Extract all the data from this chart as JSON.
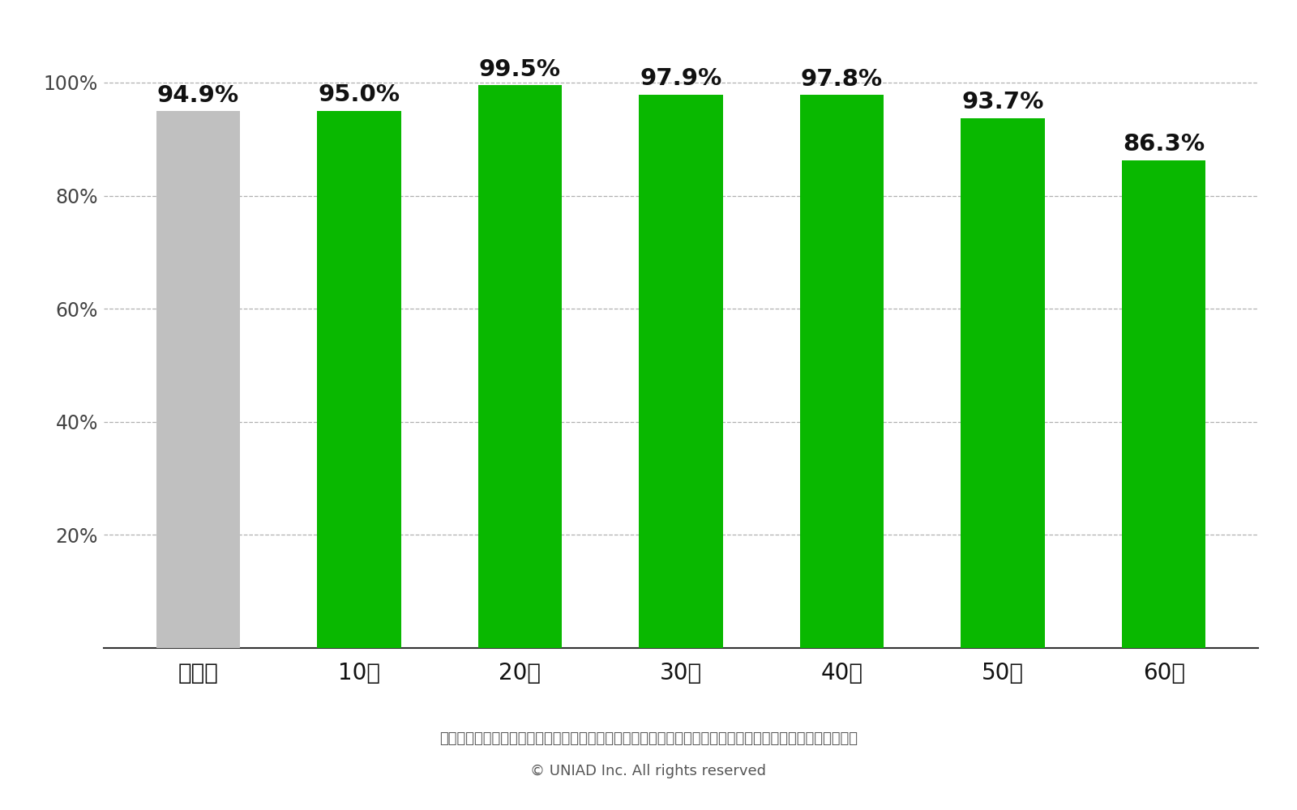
{
  "categories": [
    "全世代",
    "10代",
    "20代",
    "30代",
    "40代",
    "50代",
    "60代"
  ],
  "values": [
    94.9,
    95.0,
    99.5,
    97.9,
    97.8,
    93.7,
    86.3
  ],
  "bar_colors": [
    "#c0c0c0",
    "#09b800",
    "#09b800",
    "#09b800",
    "#09b800",
    "#09b800",
    "#09b800"
  ],
  "value_labels": [
    "94.9%",
    "95.0%",
    "99.5%",
    "97.9%",
    "97.8%",
    "93.7%",
    "86.3%"
  ],
  "ylim": [
    0,
    106
  ],
  "yticks": [
    0,
    20,
    40,
    60,
    80,
    100
  ],
  "ytick_labels": [
    "",
    "20%",
    "40%",
    "60%",
    "80%",
    "100%"
  ],
  "background_color": "#ffffff",
  "grid_color": "#b0b0b0",
  "label_fontsize": 20,
  "value_fontsize": 21,
  "tick_fontsize": 17,
  "footnote1": "参照：総務省情報通信政策研究所｜令和５年度情報通信メディアの利用時間と情報行動に関する調査報告書",
  "footnote2": "© UNIAD Inc. All rights reserved",
  "footnote_fontsize": 13,
  "bar_width": 0.52
}
